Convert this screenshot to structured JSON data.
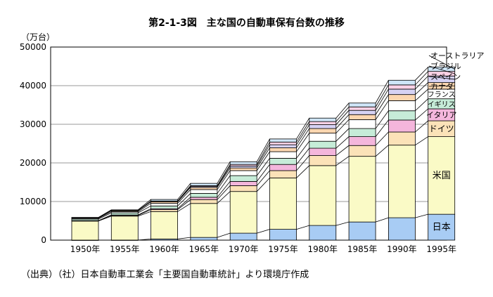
{
  "chart_data": {
    "type": "bar",
    "title": "第2-1-3図　主な国の自動車保有台数の推移",
    "ylabel": "（万台）",
    "ylim": [
      0,
      50000
    ],
    "yticks": [
      0,
      10000,
      20000,
      30000,
      40000,
      50000
    ],
    "grid": true,
    "categories": [
      "1950年",
      "1955年",
      "1960年",
      "1965年",
      "1970年",
      "1975年",
      "1980年",
      "1985年",
      "1990年",
      "1995年"
    ],
    "series": [
      {
        "name": "日本",
        "color": "#a8ccf4",
        "values": [
          5,
          15,
          300,
          700,
          1800,
          2800,
          3800,
          4700,
          5800,
          6700
        ]
      },
      {
        "name": "米国",
        "color": "#fafac6",
        "values": [
          4950,
          6200,
          7100,
          8800,
          10800,
          13300,
          15500,
          17000,
          18800,
          20100
        ]
      },
      {
        "name": "ドイツ",
        "color": "#fbe2b8",
        "values": [
          60,
          200,
          500,
          1000,
          1500,
          1900,
          2600,
          2800,
          3400,
          4100
        ]
      },
      {
        "name": "イタリア",
        "color": "#f4b6dc",
        "values": [
          40,
          100,
          250,
          600,
          1100,
          1600,
          1900,
          2300,
          3100,
          3100
        ]
      },
      {
        "name": "イギリス",
        "color": "#c6ecd8",
        "values": [
          400,
          550,
          700,
          1000,
          1500,
          1600,
          1800,
          2100,
          2400,
          2600
        ]
      },
      {
        "name": "フランス",
        "color": "#ffffff",
        "values": [
          200,
          300,
          700,
          1000,
          1300,
          1700,
          2100,
          2300,
          2600,
          2500
        ]
      },
      {
        "name": "カナダ",
        "color": "#fbd6b0",
        "values": [
          150,
          250,
          400,
          550,
          700,
          1000,
          1200,
          1300,
          1600,
          1700
        ]
      },
      {
        "name": "スペイン",
        "color": "#d6d2f4",
        "values": [
          20,
          50,
          100,
          250,
          500,
          800,
          1000,
          1100,
          1400,
          1700
        ]
      },
      {
        "name": "ブラジル",
        "color": "#fbd2e6",
        "values": [
          10,
          30,
          80,
          200,
          400,
          700,
          800,
          900,
          1100,
          1200
        ]
      },
      {
        "name": "オーストラリア",
        "color": "#cfe6f8",
        "values": [
          50,
          150,
          400,
          600,
          700,
          800,
          900,
          1000,
          1200,
          1100
        ]
      }
    ],
    "inside_labels": [
      "日本",
      "米国",
      "ドイツ",
      "イタリア"
    ],
    "legend_labels": [
      "フランス",
      "イギリス",
      "カナダ",
      "スペイン",
      "ブラジル",
      "オーストラリア"
    ]
  },
  "source_note": "（出典）（社）日本自動車工業会「主要国自動車統計」より環境庁作成"
}
